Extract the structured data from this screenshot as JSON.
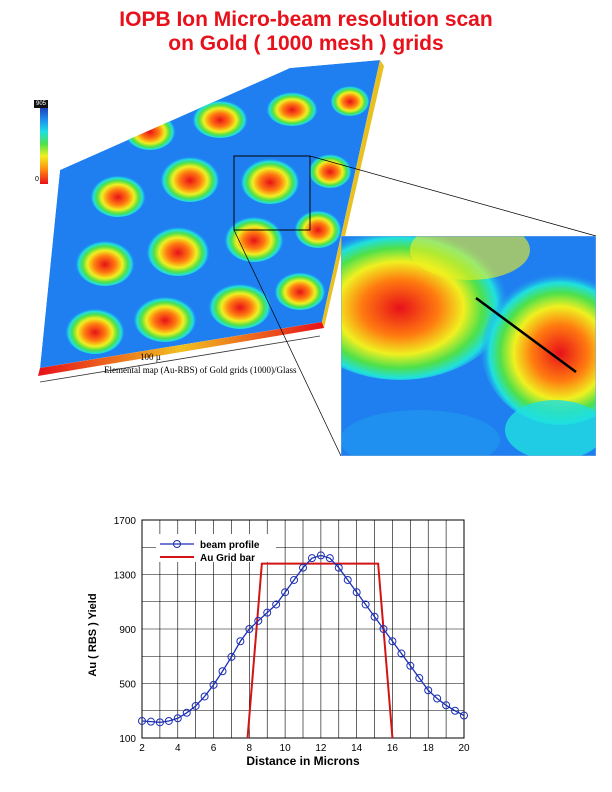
{
  "header": {
    "line1": "IOPB  Ion Micro-beam  resolution  scan",
    "line2": "on  Gold   ( 1000 mesh ) grids"
  },
  "map": {
    "colorbar_top": "905",
    "colorbar_bottom": "0",
    "scale_label": "100 µ",
    "caption": "Elemental map (Au-RBS) of Gold grids (1000)/Glass"
  },
  "colors": {
    "title": "#e8101a",
    "beam": "#1c2fb5",
    "grid_bar": "#d21414"
  },
  "chart_data": {
    "type": "line",
    "title": "",
    "xlabel": "Distance in Microns",
    "ylabel": "Au ( RBS ) Yield",
    "xlim": [
      2,
      20
    ],
    "ylim": [
      100,
      1700
    ],
    "x_ticks": [
      "2",
      "4",
      "6",
      "8",
      "10",
      "12",
      "14",
      "16",
      "18",
      "20"
    ],
    "y_ticks": [
      {
        "value": 100,
        "label": "100"
      },
      {
        "value": 500,
        "label": "500"
      },
      {
        "value": 900,
        "label": "900"
      },
      {
        "value": 1300,
        "label": "1300"
      },
      {
        "value": 1700,
        "label": "1700"
      }
    ],
    "grid": true,
    "legend": "top-left",
    "series": [
      {
        "name": "beam profile",
        "color": "#1c2fb5",
        "marker": "circle",
        "x": [
          2,
          2.5,
          3,
          3.5,
          4,
          4.5,
          5,
          5.5,
          6,
          6.5,
          7,
          7.5,
          8,
          8.5,
          9,
          9.5,
          10,
          10.5,
          11,
          11.5,
          12,
          12.5,
          13,
          13.5,
          14,
          14.5,
          15,
          15.5,
          16,
          16.5,
          17,
          17.5,
          18,
          18.5,
          19,
          19.5,
          20
        ],
        "y": [
          225,
          220,
          215,
          225,
          245,
          285,
          335,
          405,
          490,
          590,
          695,
          810,
          900,
          960,
          1020,
          1080,
          1170,
          1260,
          1350,
          1420,
          1440,
          1420,
          1350,
          1260,
          1170,
          1080,
          990,
          900,
          810,
          720,
          630,
          540,
          450,
          390,
          340,
          300,
          265
        ]
      },
      {
        "name": "Au Grid bar",
        "color": "#d21414",
        "x": [
          7.9,
          8.7,
          15.2,
          16.0
        ],
        "y": [
          100,
          1380,
          1380,
          100
        ]
      }
    ]
  }
}
